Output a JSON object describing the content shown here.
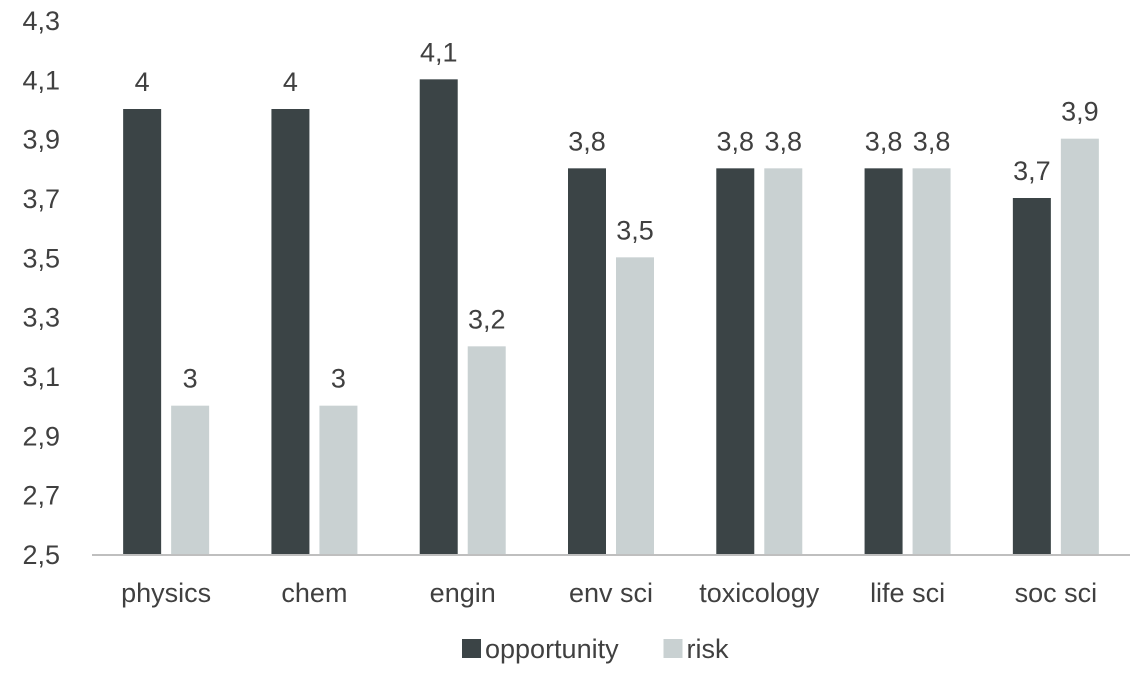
{
  "chart_data": {
    "type": "bar",
    "categories": [
      "physics",
      "chem",
      "engin",
      "env sci",
      "toxicology",
      "life sci",
      "soc sci"
    ],
    "series": [
      {
        "name": "opportunity",
        "values": [
          4,
          4,
          4.1,
          3.8,
          3.8,
          3.8,
          3.7
        ],
        "color": "#3b4446"
      },
      {
        "name": "risk",
        "values": [
          3,
          3,
          3.2,
          3.5,
          3.8,
          3.8,
          3.9
        ],
        "color": "#c9d1d2"
      }
    ],
    "y_ticks": [
      "2,5",
      "2,7",
      "2,9",
      "3,1",
      "3,3",
      "3,5",
      "3,7",
      "3,9",
      "4,1",
      "4,3"
    ],
    "ylim": [
      2.5,
      4.3
    ],
    "grid": false,
    "legend_position": "bottom",
    "decimal_separator": ","
  }
}
